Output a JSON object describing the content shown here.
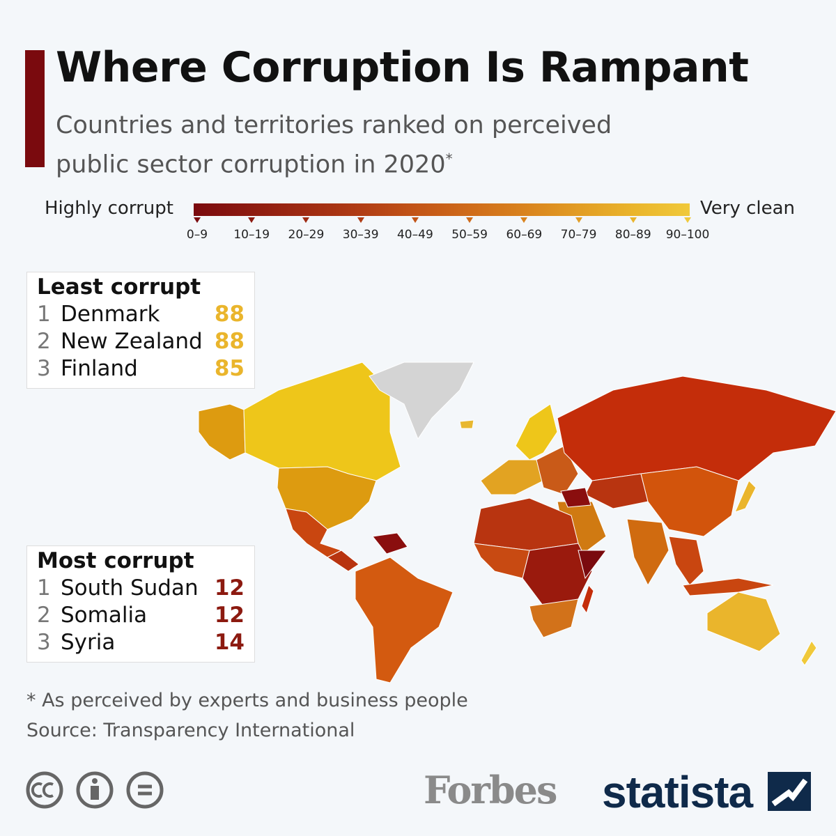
{
  "header": {
    "title": "Where Corruption Is Rampant",
    "subtitle": "Countries and territories ranked on perceived public sector corruption in 2020",
    "subtitle_mark": "*"
  },
  "legend": {
    "low_label": "Highly corrupt",
    "high_label": "Very clean",
    "ranges": [
      "0–9",
      "10–19",
      "20–29",
      "30–39",
      "40–49",
      "50–59",
      "60–69",
      "70–79",
      "80–89",
      "90–100"
    ],
    "colors": [
      "#7a0a0e",
      "#8c1a10",
      "#9e2a12",
      "#b03c14",
      "#c25417",
      "#cf6b1a",
      "#d9831e",
      "#e29d24",
      "#eab52c",
      "#f0c93a"
    ]
  },
  "least_corrupt": {
    "title": "Least corrupt",
    "rows": [
      {
        "rank": 1,
        "country": "Denmark",
        "score": 88
      },
      {
        "rank": 2,
        "country": "New Zealand",
        "score": 88
      },
      {
        "rank": 3,
        "country": "Finland",
        "score": 85
      }
    ]
  },
  "most_corrupt": {
    "title": "Most corrupt",
    "rows": [
      {
        "rank": 1,
        "country": "South Sudan",
        "score": 12
      },
      {
        "rank": 2,
        "country": "Somalia",
        "score": 12
      },
      {
        "rank": 3,
        "country": "Syria",
        "score": 14
      }
    ]
  },
  "footer": {
    "footnote": "* As perceived by experts and business people",
    "source": "Source: Transparency International",
    "partner": "Forbes",
    "brand": "statista"
  }
}
